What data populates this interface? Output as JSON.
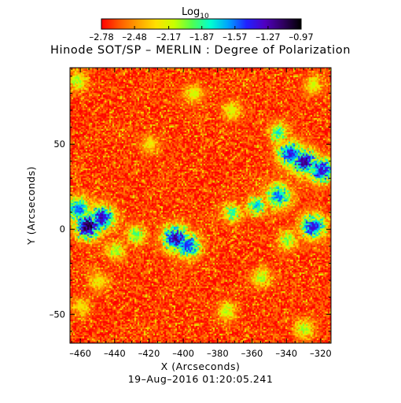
{
  "chart_data": {
    "type": "heatmap",
    "title": "Hinode SOT/SP – MERLIN : Degree of Polarization",
    "xlabel": "X (Arcseconds)",
    "ylabel": "Y (Arcseconds)",
    "xlim": [
      -466,
      -314
    ],
    "ylim": [
      -67,
      95
    ],
    "xticks": [
      -460,
      -440,
      -420,
      -400,
      -380,
      -360,
      -340,
      -320
    ],
    "yticks": [
      -50,
      0,
      50
    ],
    "colorbar": {
      "label_base": "Log",
      "label_sub": "10",
      "ticks": [
        -2.78,
        -2.48,
        -2.17,
        -1.87,
        -1.57,
        -1.27,
        -0.97
      ],
      "tick_labels": [
        "–2.78",
        "–2.48",
        "–2.17",
        "–1.87",
        "–1.57",
        "–1.27",
        "–0.97"
      ],
      "colors": [
        "#ff0000",
        "#ff5a00",
        "#ffa000",
        "#ffe000",
        "#c8ff00",
        "#50ff50",
        "#00ffd0",
        "#00a0ff",
        "#2020ff",
        "#5000c0",
        "#300060",
        "#000000"
      ]
    },
    "colormap_field": "log10 degree of polarization",
    "value_range": [
      -2.78,
      -0.97
    ],
    "patches": [
      {
        "x": -456,
        "y": 2,
        "peak": -1.0
      },
      {
        "x": -448,
        "y": 7,
        "peak": -1.2
      },
      {
        "x": -462,
        "y": 12,
        "peak": -1.5
      },
      {
        "x": -405,
        "y": -5,
        "peak": -1.15
      },
      {
        "x": -398,
        "y": -9,
        "peak": -1.35
      },
      {
        "x": -428,
        "y": -3,
        "peak": -1.85
      },
      {
        "x": -440,
        "y": -12,
        "peak": -2.0
      },
      {
        "x": -330,
        "y": 40,
        "peak": -1.15
      },
      {
        "x": -338,
        "y": 45,
        "peak": -1.3
      },
      {
        "x": -320,
        "y": 35,
        "peak": -1.25
      },
      {
        "x": -345,
        "y": 20,
        "peak": -1.5
      },
      {
        "x": -358,
        "y": 14,
        "peak": -1.6
      },
      {
        "x": -372,
        "y": 10,
        "peak": -1.8
      },
      {
        "x": -345,
        "y": 57,
        "peak": -1.7
      },
      {
        "x": -325,
        "y": 2,
        "peak": -1.3
      },
      {
        "x": -340,
        "y": -6,
        "peak": -1.9
      },
      {
        "x": -355,
        "y": -28,
        "peak": -2.0
      },
      {
        "x": -330,
        "y": -58,
        "peak": -2.0
      },
      {
        "x": -375,
        "y": -48,
        "peak": -2.05
      },
      {
        "x": -462,
        "y": 88,
        "peak": -2.0
      },
      {
        "x": -395,
        "y": 80,
        "peak": -2.1
      },
      {
        "x": -372,
        "y": 70,
        "peak": -2.1
      },
      {
        "x": -450,
        "y": -30,
        "peak": -2.15
      },
      {
        "x": -460,
        "y": -45,
        "peak": -2.2
      },
      {
        "x": -420,
        "y": 50,
        "peak": -2.2
      },
      {
        "x": -325,
        "y": 85,
        "peak": -2.1
      }
    ]
  },
  "footer": {
    "timestamp": "19–Aug–2016 01:20:05.241"
  }
}
